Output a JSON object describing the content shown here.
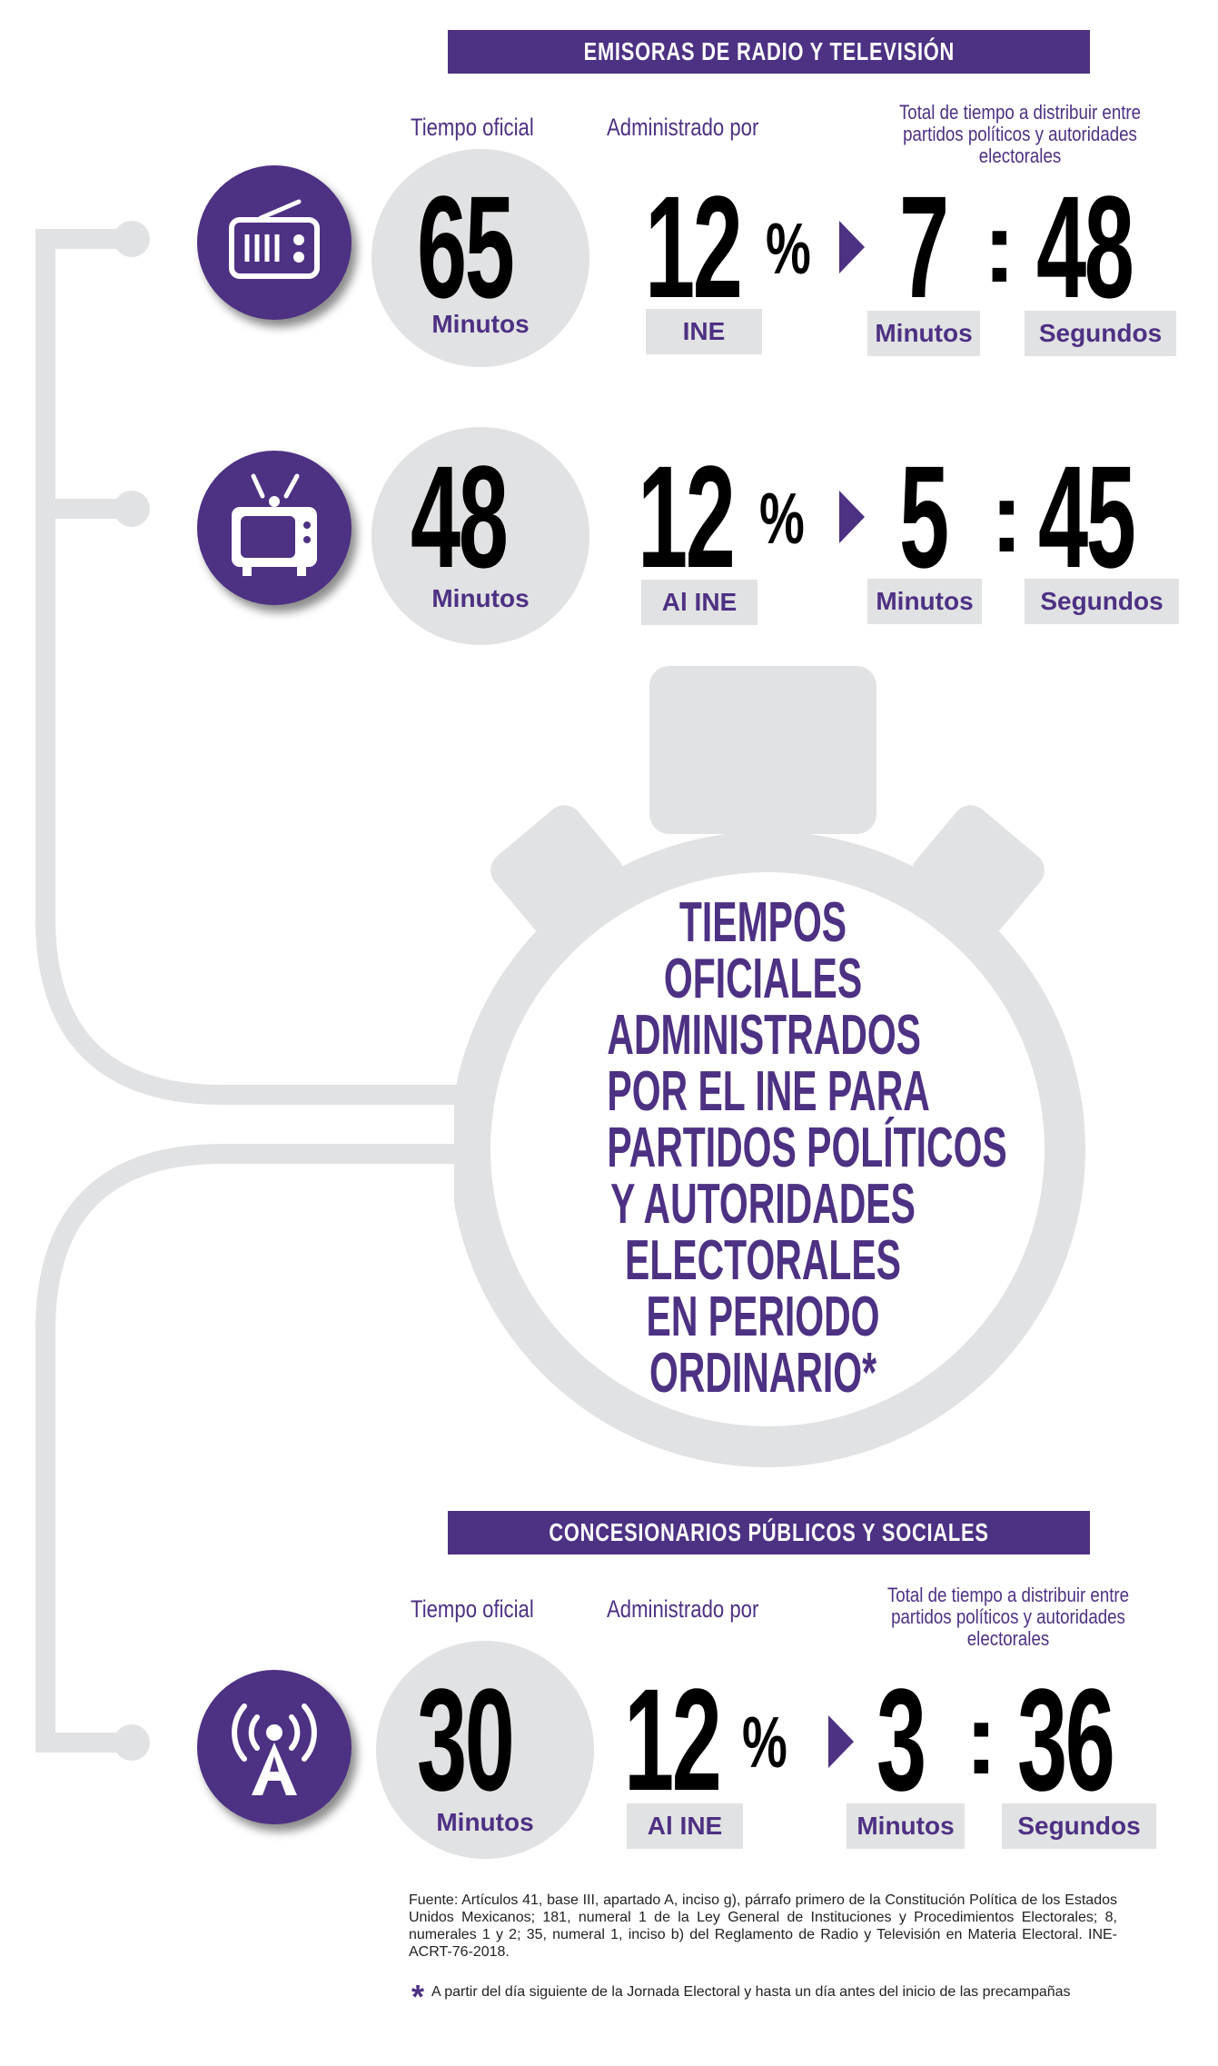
{
  "section_radio_tv": {
    "banner": "EMISORAS DE RADIO Y TELEVISIÓN",
    "header_tiempo": "Tiempo oficial",
    "header_admin": "Administrado por",
    "header_total": "Total de tiempo a distribuir entre partidos políticos y autoridades electorales",
    "radio": {
      "minutes": "65",
      "minutes_label": "Minutos",
      "percent": "12",
      "percent_sign": "%",
      "admin": "INE",
      "total_minutes": "7",
      "total_seconds": "48",
      "colon": ":",
      "minutes_tag": "Minutos",
      "seconds_tag": "Segundos"
    },
    "tv": {
      "minutes": "48",
      "minutes_label": "Minutos",
      "percent": "12",
      "percent_sign": "%",
      "admin": "Al INE",
      "total_minutes": "5",
      "total_seconds": "45",
      "colon": ":",
      "minutes_tag": "Minutos",
      "seconds_tag": "Segundos"
    }
  },
  "title_lines": [
    "TIEMPOS",
    "OFICIALES",
    "ADMINISTRADOS",
    "POR EL INE PARA",
    "PARTIDOS POLÍTICOS",
    "Y AUTORIDADES",
    "ELECTORALES",
    "EN PERIODO",
    "ORDINARIO*"
  ],
  "section_public": {
    "banner": "CONCESIONARIOS PÚBLICOS Y SOCIALES",
    "header_tiempo": "Tiempo oficial",
    "header_admin": "Administrado por",
    "header_total": "Total de tiempo a distribuir entre partidos políticos y autoridades electorales",
    "minutes": "30",
    "minutes_label": "Minutos",
    "percent": "12",
    "percent_sign": "%",
    "admin": "Al INE",
    "total_minutes": "3",
    "total_seconds": "36",
    "colon": ":",
    "minutes_tag": "Minutos",
    "seconds_tag": "Segundos"
  },
  "footer": {
    "source": "Fuente: Artículos 41, base III, apartado A, inciso g), párrafo primero de la Constitución Política de los Estados Unidos Mexicanos; 181, numeral 1 de la Ley General de Instituciones y Procedimientos Electorales; 8, numerales 1 y 2; 35, numeral 1, inciso b) del Reglamento de Radio y Televisión en Materia Electoral. INE-ACRT-76-2018.",
    "asterisk": "*",
    "note": "A partir del día siguiente de la Jornada Electoral y hasta un día antes del inicio de las precampañas"
  },
  "colors": {
    "purple": "#4d3183",
    "light_gray": "#e1e2e3",
    "text": "#000000"
  },
  "icons": [
    "radio-icon",
    "tv-icon",
    "antenna-icon",
    "stopwatch-graphic"
  ]
}
